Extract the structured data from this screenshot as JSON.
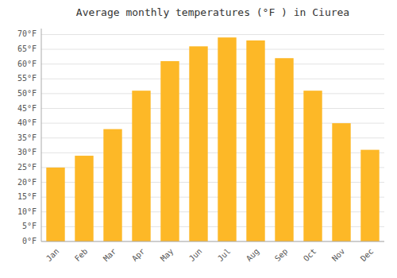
{
  "chart_data": {
    "type": "bar",
    "title": "Average monthly temperatures (°F ) in Ciurea",
    "categories": [
      "Jan",
      "Feb",
      "Mar",
      "Apr",
      "May",
      "Jun",
      "Jul",
      "Aug",
      "Sep",
      "Oct",
      "Nov",
      "Dec"
    ],
    "values": [
      25,
      29,
      38,
      51,
      61,
      66,
      69,
      68,
      62,
      51,
      40,
      31
    ],
    "color": "#FDB827",
    "ylim": [
      0,
      72
    ],
    "yticks": [
      {
        "value": 0,
        "label": "0°F"
      },
      {
        "value": 5,
        "label": "5°F"
      },
      {
        "value": 10,
        "label": "10°F"
      },
      {
        "value": 15,
        "label": "15°F"
      },
      {
        "value": 20,
        "label": "20°F"
      },
      {
        "value": 25,
        "label": "25°F"
      },
      {
        "value": 30,
        "label": "30°F"
      },
      {
        "value": 35,
        "label": "35°F"
      },
      {
        "value": 40,
        "label": "40°F"
      },
      {
        "value": 45,
        "label": "45°F"
      },
      {
        "value": 50,
        "label": "50°F"
      },
      {
        "value": 55,
        "label": "55°F"
      },
      {
        "value": 60,
        "label": "60°F"
      },
      {
        "value": 65,
        "label": "65°F"
      },
      {
        "value": 70,
        "label": "70°F"
      }
    ],
    "grid": true
  }
}
